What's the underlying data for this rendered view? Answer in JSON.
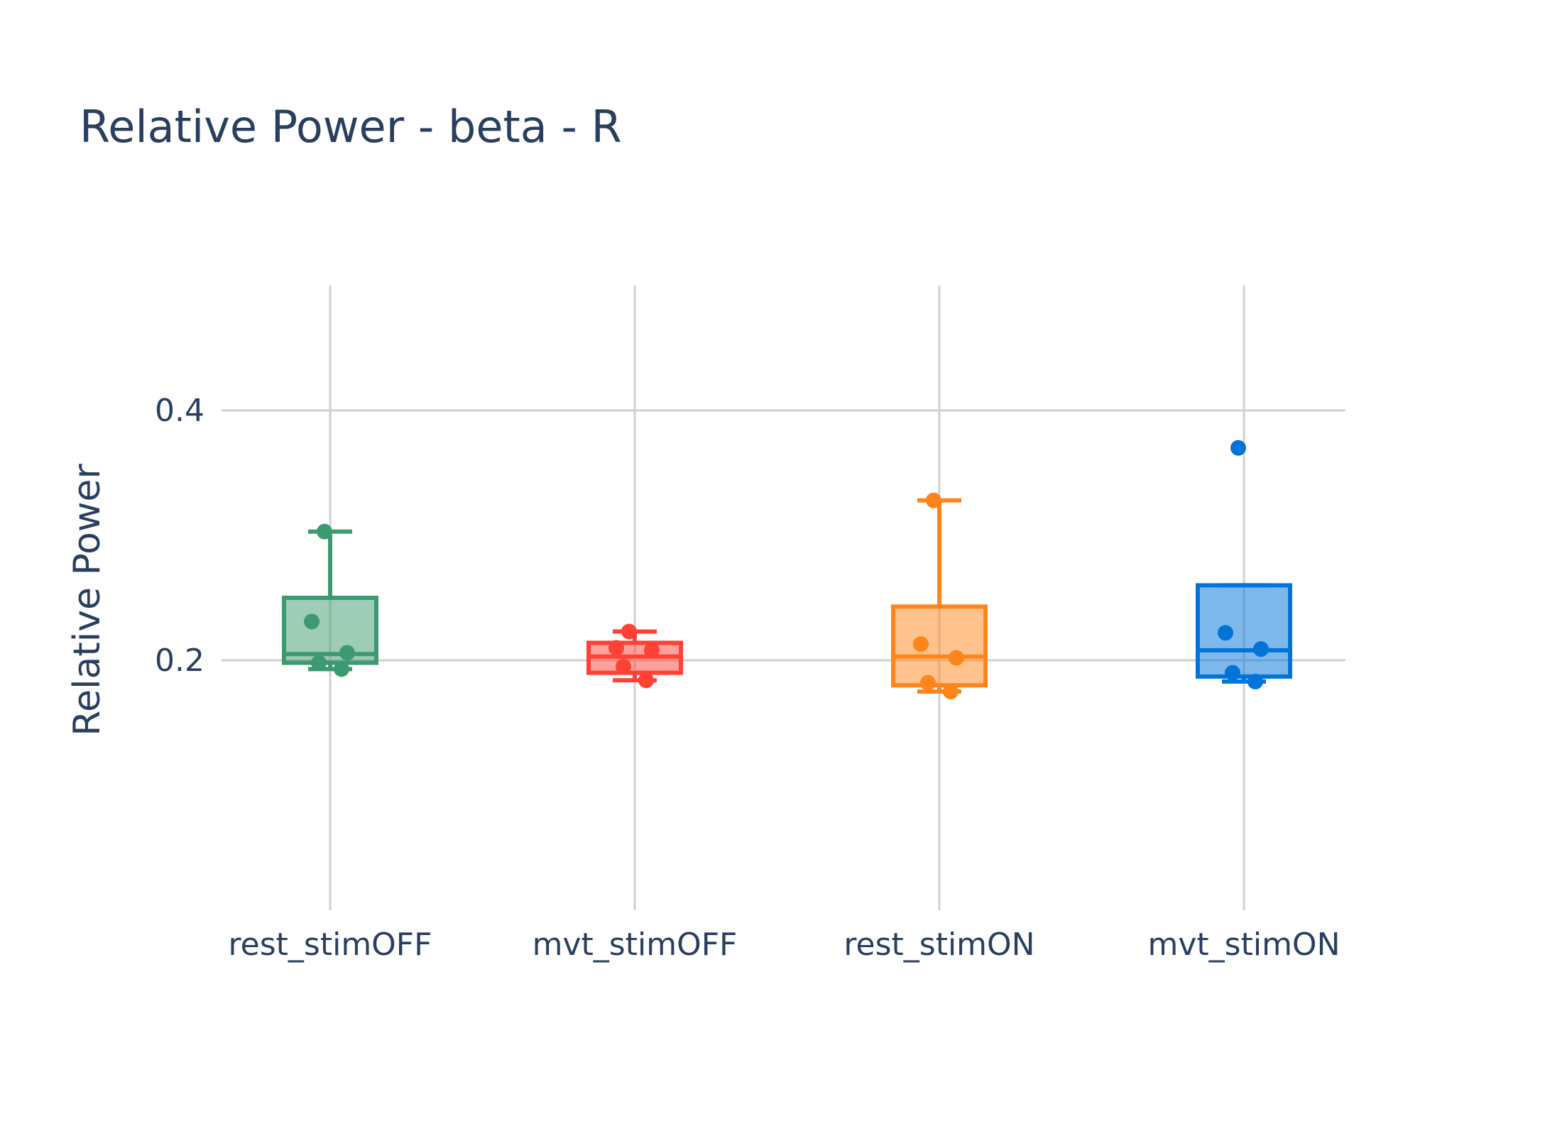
{
  "chart_data": {
    "type": "box",
    "title": "Relative Power - beta - R",
    "xlabel": "",
    "ylabel": "Relative Power",
    "ylim": [
      0.0,
      0.5
    ],
    "yticks": [
      0.2,
      0.4
    ],
    "grid": true,
    "legend": "none",
    "categories": [
      "rest_stimOFF",
      "mvt_stimOFF",
      "rest_stimON",
      "mvt_stimON"
    ],
    "series": [
      {
        "category": "rest_stimOFF",
        "color": "#3d9970",
        "box": {
          "whisker_low": 0.193,
          "q1": 0.198,
          "median": 0.205,
          "q3": 0.25,
          "whisker_high": 0.303
        },
        "points": [
          0.303,
          0.231,
          0.206,
          0.198,
          0.193
        ]
      },
      {
        "category": "mvt_stimOFF",
        "color": "#ff4136",
        "box": {
          "whisker_low": 0.184,
          "q1": 0.19,
          "median": 0.203,
          "q3": 0.214,
          "whisker_high": 0.223
        },
        "points": [
          0.223,
          0.21,
          0.208,
          0.195,
          0.184
        ]
      },
      {
        "category": "rest_stimON",
        "color": "#ff851b",
        "box": {
          "whisker_low": 0.175,
          "q1": 0.18,
          "median": 0.203,
          "q3": 0.243,
          "whisker_high": 0.328
        },
        "points": [
          0.328,
          0.213,
          0.202,
          0.182,
          0.175
        ]
      },
      {
        "category": "mvt_stimON",
        "color": "#0074d9",
        "box": {
          "whisker_low": 0.183,
          "q1": 0.187,
          "median": 0.208,
          "q3": 0.26,
          "whisker_high": 0.26
        },
        "points": [
          0.37,
          0.222,
          0.209,
          0.19,
          0.183
        ]
      }
    ]
  }
}
